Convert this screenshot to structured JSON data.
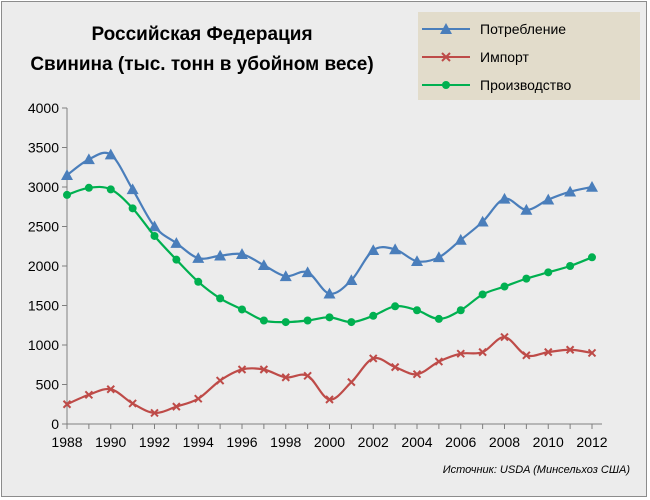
{
  "title_line1": "Российская Федерация",
  "title_line2": "Свинина (тыс. тонн в убойном весе)",
  "source": "Источник:  USDA  (Минсельхоз США)",
  "chart_data": {
    "type": "line",
    "title": "Российская Федерация Свинина (тыс. тонн в убойном весе)",
    "x": [
      1988,
      1989,
      1990,
      1991,
      1992,
      1993,
      1994,
      1995,
      1996,
      1997,
      1998,
      1999,
      2000,
      2001,
      2002,
      2003,
      2004,
      2005,
      2006,
      2007,
      2008,
      2009,
      2010,
      2011,
      2012
    ],
    "xlim": [
      1988,
      2012
    ],
    "ylim": [
      0,
      4000
    ],
    "x_ticks": [
      1988,
      1990,
      1992,
      1994,
      1996,
      1998,
      2000,
      2002,
      2004,
      2006,
      2008,
      2010,
      2012
    ],
    "y_ticks": [
      0,
      500,
      1000,
      1500,
      2000,
      2500,
      3000,
      3500,
      4000
    ],
    "grid": false,
    "legend_position": "top-right",
    "series": [
      {
        "name": "Потребление",
        "color": "#4a7ebb",
        "marker": "triangle",
        "values": [
          3150,
          3350,
          3410,
          2970,
          2500,
          2290,
          2100,
          2130,
          2150,
          2010,
          1870,
          1920,
          1650,
          1820,
          2200,
          2210,
          2060,
          2110,
          2330,
          2560,
          2850,
          2710,
          2840,
          2940,
          3000
        ]
      },
      {
        "name": "Импорт",
        "color": "#be4b48",
        "marker": "x",
        "values": [
          250,
          370,
          440,
          260,
          140,
          220,
          320,
          550,
          690,
          690,
          590,
          610,
          310,
          530,
          830,
          720,
          630,
          790,
          890,
          910,
          1100,
          870,
          910,
          940,
          900
        ]
      },
      {
        "name": "Производство",
        "color": "#00b050",
        "marker": "circle",
        "values": [
          2900,
          2990,
          2970,
          2730,
          2380,
          2080,
          1800,
          1590,
          1450,
          1310,
          1290,
          1310,
          1350,
          1290,
          1370,
          1490,
          1440,
          1330,
          1440,
          1640,
          1740,
          1840,
          1920,
          2000,
          2110
        ]
      }
    ]
  }
}
